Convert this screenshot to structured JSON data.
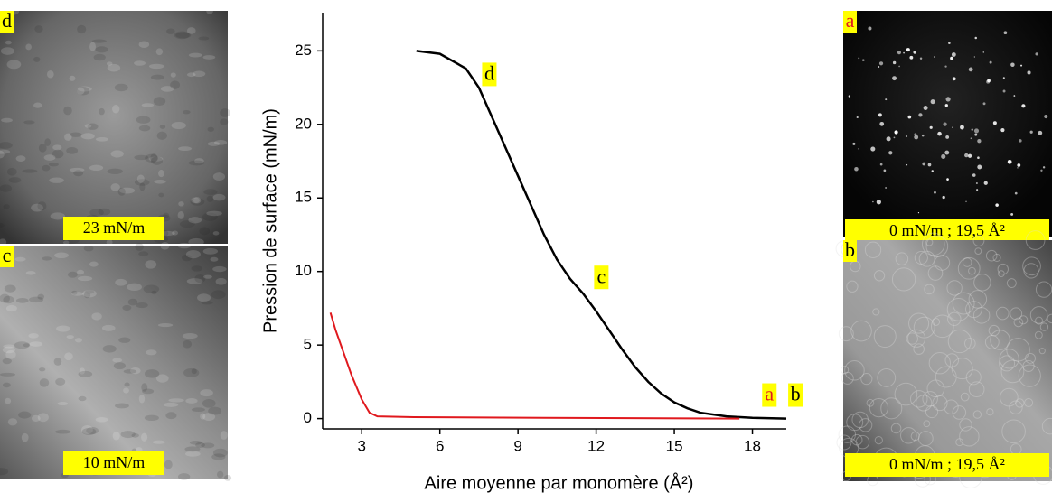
{
  "chart_data": {
    "type": "line",
    "x_label": "Aire moyenne par monomère (Å²)",
    "y_label": "Pression de surface (mN/m)",
    "xlim": [
      1.5,
      19.3
    ],
    "ylim": [
      -0.7,
      27.6
    ],
    "xticks": [
      3,
      6,
      9,
      12,
      15,
      18
    ],
    "yticks": [
      0,
      5,
      10,
      15,
      20,
      25
    ],
    "series": [
      {
        "color": "#000000",
        "x": [
          5.1,
          6,
          7,
          7.5,
          8,
          8.5,
          9,
          9.5,
          10,
          10.5,
          11,
          11.5,
          12,
          12.5,
          13,
          13.5,
          14,
          14.5,
          15,
          15.5,
          16,
          17,
          18,
          19.3
        ],
        "values": [
          25,
          24.8,
          23.8,
          22.5,
          20.5,
          18.5,
          16.5,
          14.5,
          12.5,
          10.8,
          9.5,
          8.5,
          7.3,
          6,
          4.7,
          3.5,
          2.5,
          1.7,
          1.1,
          0.7,
          0.4,
          0.15,
          0.05,
          0
        ]
      },
      {
        "color": "#e0191e",
        "x": [
          1.8,
          2,
          2.3,
          2.6,
          3,
          3.3,
          3.6,
          5,
          10,
          17.5
        ],
        "values": [
          7.2,
          6,
          4.5,
          3,
          1.3,
          0.4,
          0.15,
          0.1,
          0.05,
          0
        ]
      }
    ],
    "annotations": [
      {
        "text": "d",
        "x": 7.9,
        "y": 23.4,
        "color": "#000000"
      },
      {
        "text": "c",
        "x": 12.2,
        "y": 9.6,
        "color": "#000000"
      },
      {
        "text": "a",
        "x": 18.65,
        "y": 1.6,
        "color": "#e0191e"
      },
      {
        "text": "b",
        "x": 19.65,
        "y": 1.6,
        "color": "#000000"
      }
    ]
  },
  "images": [
    {
      "letter": "d",
      "letter_color": "#000000",
      "caption": "23 mN/m"
    },
    {
      "letter": "c",
      "letter_color": "#000000",
      "caption": "10 mN/m"
    },
    {
      "letter": "a",
      "letter_color": "#e0191e",
      "caption": "0 mN/m ; 19,5 Å²"
    },
    {
      "letter": "b",
      "letter_color": "#000000",
      "caption": "0 mN/m ; 19,5 Å²"
    }
  ]
}
